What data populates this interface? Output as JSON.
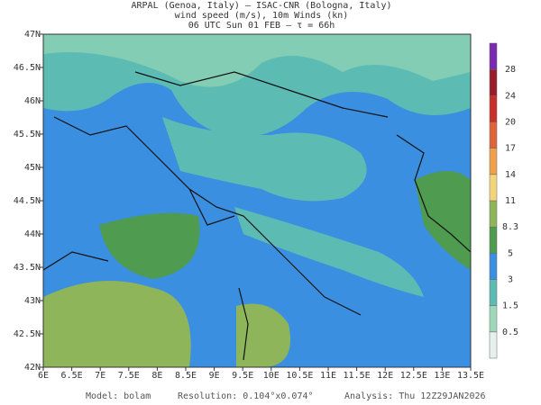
{
  "header": {
    "lines": [
      "ARPAL (Genoa, Italy)  —  ISAC-CNR (Bologna, Italy)",
      "wind speed (m/s), 10m Winds (kn)",
      "06 UTC Sun 01 FEB  –  τ = 66h"
    ]
  },
  "map": {
    "lon_labels": [
      "6E",
      "6.5E",
      "7E",
      "7.5E",
      "8E",
      "8.5E",
      "9E",
      "9.5E",
      "10E",
      "10.5E",
      "11E",
      "11.5E",
      "12E",
      "12.5E",
      "13E",
      "13.5E"
    ],
    "lat_labels": [
      "42N",
      "42.5N",
      "43N",
      "43.5N",
      "44N",
      "44.5N",
      "45N",
      "45.5N",
      "46N",
      "46.5N",
      "47N"
    ]
  },
  "colorbar": {
    "levels": [
      "0.5",
      "1.5",
      "3",
      "5",
      "8.3",
      "11",
      "14",
      "17",
      "20",
      "24",
      "28"
    ],
    "colors": [
      "#e6f0ee",
      "#9fd8b6",
      "#5cbcb4",
      "#3a8fe0",
      "#4f9b4f",
      "#8fb55a",
      "#f2d57a",
      "#f0a04a",
      "#e0643a",
      "#c8302a",
      "#9a1e2a",
      "#7a2ab0"
    ]
  },
  "footer": {
    "model": "Model: bolam",
    "resolution": "Resolution: 0.104°x0.074°",
    "analysis": "Analysis: Thu 12Z29JAN2026"
  }
}
